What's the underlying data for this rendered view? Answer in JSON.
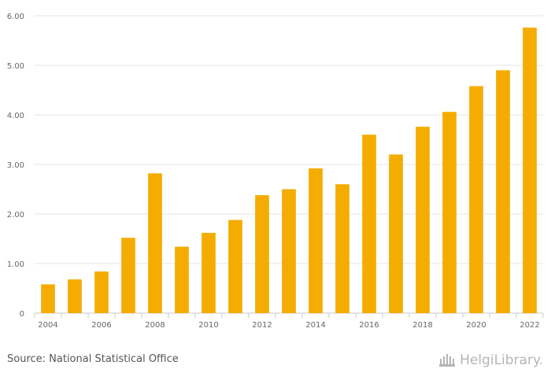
{
  "chart_data": {
    "type": "bar",
    "categories": [
      "2004",
      "2005",
      "2006",
      "2007",
      "2008",
      "2009",
      "2010",
      "2011",
      "2012",
      "2013",
      "2014",
      "2015",
      "2016",
      "2017",
      "2018",
      "2019",
      "2020",
      "2021",
      "2022"
    ],
    "values": [
      0.58,
      0.68,
      0.84,
      1.52,
      2.82,
      1.34,
      1.62,
      1.88,
      2.38,
      2.5,
      2.92,
      2.6,
      3.6,
      3.2,
      3.76,
      4.06,
      4.58,
      4.9,
      5.76
    ],
    "x_tick_labels": [
      "2004",
      "",
      "2006",
      "",
      "2008",
      "",
      "2010",
      "",
      "2012",
      "",
      "2014",
      "",
      "2016",
      "",
      "2018",
      "",
      "2020",
      "",
      "2022"
    ],
    "y_ticks": [
      0,
      1,
      2,
      3,
      4,
      5,
      6
    ],
    "y_tick_labels": [
      "0",
      "1.00",
      "2.00",
      "3.00",
      "4.00",
      "5.00",
      "6.00"
    ],
    "ylim": [
      0,
      6
    ],
    "grid": true,
    "bar_color": "#f5ac00",
    "title": "",
    "xlabel": "",
    "ylabel": ""
  },
  "footer": {
    "source": "Source: National Statistical Office",
    "brand": "HelgiLibrary."
  }
}
